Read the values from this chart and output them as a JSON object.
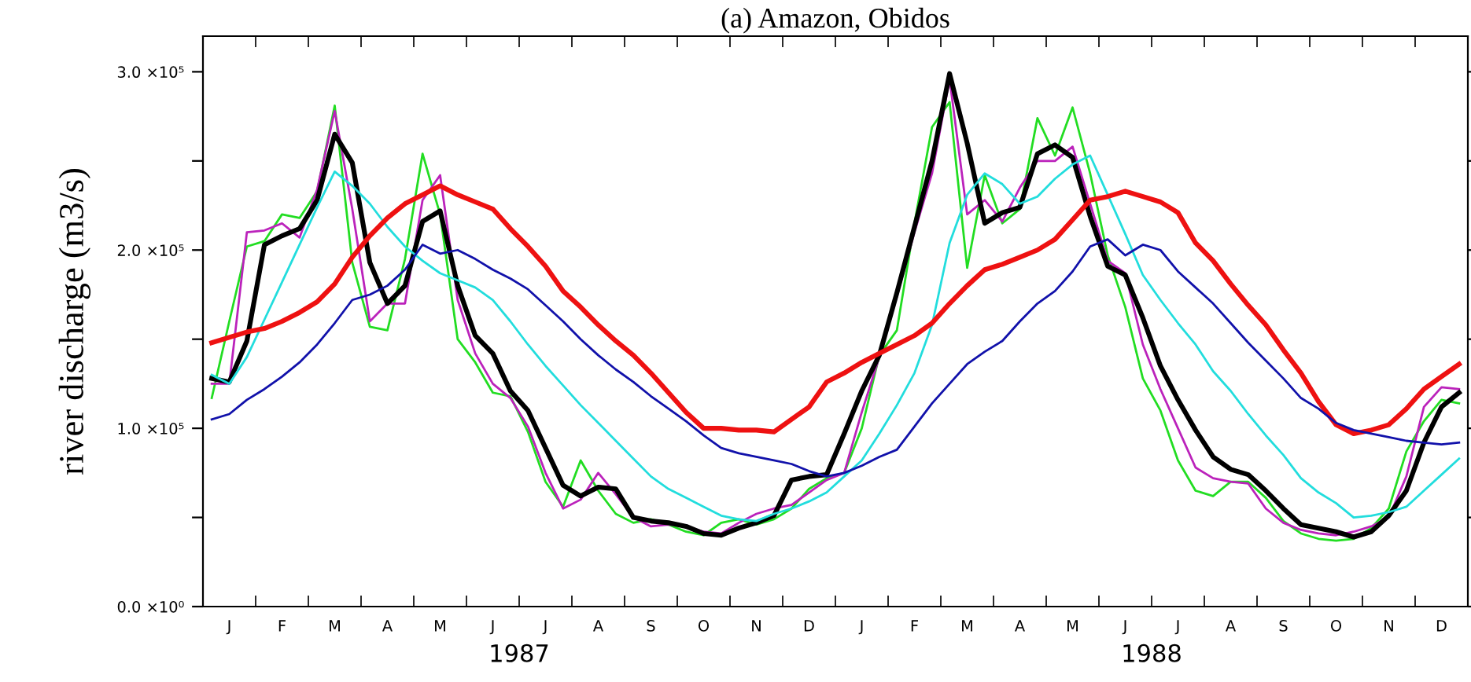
{
  "chart_data": {
    "type": "line",
    "title": "(a) Amazon, Obidos",
    "ylabel": "river discharge (m3/s)",
    "annotations": [
      "1987",
      "1988"
    ],
    "categories": [
      null,
      "J",
      null,
      null,
      "F",
      null,
      null,
      "M",
      null,
      null,
      "A",
      null,
      null,
      "M",
      null,
      null,
      "J",
      null,
      null,
      "J",
      null,
      null,
      "A",
      null,
      null,
      "S",
      null,
      null,
      "O",
      null,
      null,
      "N",
      null,
      null,
      "D",
      null,
      null,
      "J",
      null,
      null,
      "F",
      null,
      null,
      "M",
      null,
      null,
      "A",
      null,
      null,
      "M",
      null,
      null,
      "J",
      null,
      null,
      "J",
      null,
      null,
      "A",
      null,
      null,
      "S",
      null,
      null,
      "O",
      null,
      null,
      "N",
      null,
      null,
      "D",
      null
    ],
    "ylim": [
      0,
      320000
    ],
    "yticks": [
      {
        "value": 0,
        "label": "0.0 ×10⁰"
      },
      {
        "value": 50000,
        "label": null
      },
      {
        "value": 100000,
        "label": "1.0 ×10⁵"
      },
      {
        "value": 150000,
        "label": null
      },
      {
        "value": 200000,
        "label": "2.0 ×10⁵"
      },
      {
        "value": 250000,
        "label": null
      },
      {
        "value": 300000,
        "label": "3.0 ×10⁵"
      }
    ],
    "grid": false,
    "series": [
      {
        "color": "#22dd22",
        "values": [
          117000,
          160000,
          202000,
          205000,
          220000,
          218000,
          233000,
          281000,
          193000,
          157000,
          155000,
          195000,
          254000,
          220000,
          150000,
          137000,
          120000,
          118000,
          98000,
          70000,
          56000,
          82000,
          65000,
          52000,
          47000,
          49000,
          46000,
          42000,
          40000,
          47000,
          49000,
          46000,
          49000,
          55000,
          66000,
          72000,
          75000,
          100000,
          141000,
          155000,
          215000,
          269000,
          283000,
          190000,
          242000,
          215000,
          223000,
          274000,
          253000,
          280000,
          243000,
          197000,
          168000,
          128000,
          110000,
          82000,
          65000,
          62000,
          70000,
          70000,
          61000,
          48000,
          41000,
          38000,
          37000,
          38000,
          44000,
          55000,
          87000,
          104000,
          116000,
          114000
        ]
      },
      {
        "color": "#bb22bb",
        "values": [
          125000,
          125000,
          210000,
          211000,
          215000,
          207000,
          234000,
          278000,
          223000,
          160000,
          170000,
          170000,
          228000,
          242000,
          172000,
          142000,
          125000,
          117000,
          101000,
          75000,
          55000,
          60000,
          75000,
          63000,
          50000,
          45000,
          46000,
          45000,
          42000,
          41000,
          47000,
          52000,
          55000,
          57000,
          64000,
          71000,
          75000,
          109000,
          140000,
          174000,
          210000,
          243000,
          296000,
          220000,
          228000,
          216000,
          235000,
          250000,
          250000,
          258000,
          226000,
          194000,
          187000,
          147000,
          122000,
          100000,
          78000,
          72000,
          70000,
          69000,
          55000,
          47000,
          43000,
          41000,
          40000,
          42000,
          45000,
          50000,
          73000,
          112000,
          123000,
          122000
        ]
      },
      {
        "color": "#000000",
        "values": [
          128000,
          126000,
          149000,
          203000,
          208000,
          212000,
          228000,
          265000,
          249000,
          193000,
          170000,
          180000,
          216000,
          222000,
          180000,
          152000,
          142000,
          121000,
          110000,
          89000,
          68000,
          62000,
          67000,
          66000,
          50000,
          48000,
          47000,
          45000,
          41000,
          40000,
          44000,
          47000,
          51000,
          71000,
          73000,
          74000,
          97000,
          121000,
          141000,
          176000,
          213000,
          250000,
          299000,
          260000,
          215000,
          221000,
          224000,
          254000,
          259000,
          252000,
          219000,
          191000,
          186000,
          162000,
          135000,
          116000,
          99000,
          84000,
          77000,
          74000,
          65000,
          55000,
          46000,
          44000,
          42000,
          39000,
          42000,
          51000,
          65000,
          92000,
          112000,
          120000
        ]
      },
      {
        "color": "#22dddd",
        "values": [
          130000,
          125000,
          140000,
          161000,
          182000,
          203000,
          224000,
          244000,
          236000,
          226000,
          213000,
          202000,
          194000,
          187000,
          183000,
          179000,
          172000,
          160000,
          147000,
          135000,
          124000,
          113000,
          103000,
          93000,
          83000,
          73000,
          66000,
          61000,
          56000,
          51000,
          49000,
          48000,
          52000,
          55000,
          59000,
          64000,
          73000,
          82000,
          97000,
          113000,
          131000,
          158000,
          204000,
          231000,
          243000,
          237000,
          226000,
          230000,
          240000,
          248000,
          253000,
          231000,
          209000,
          186000,
          172000,
          159000,
          147000,
          132000,
          121000,
          108000,
          96000,
          85000,
          72000,
          64000,
          58000,
          50000,
          51000,
          53000,
          56000,
          65000,
          74000,
          83000
        ]
      },
      {
        "color": "#ee1111",
        "values": [
          148000,
          151000,
          154000,
          156000,
          160000,
          165000,
          171000,
          181000,
          196000,
          208000,
          218000,
          226000,
          231000,
          236000,
          231000,
          227000,
          223000,
          212000,
          202000,
          191000,
          177000,
          168000,
          158000,
          149000,
          141000,
          131000,
          120000,
          109000,
          100000,
          100000,
          99000,
          99000,
          98000,
          105000,
          112000,
          126000,
          131000,
          137000,
          142000,
          147000,
          152000,
          159000,
          170000,
          180000,
          189000,
          192000,
          196000,
          200000,
          206000,
          217000,
          228000,
          230000,
          233000,
          230000,
          227000,
          221000,
          204000,
          194000,
          181000,
          169000,
          158000,
          144000,
          131000,
          115000,
          102000,
          97000,
          99000,
          102000,
          111000,
          122000,
          129000,
          136000
        ]
      },
      {
        "color": "#1111aa",
        "values": [
          105000,
          108000,
          116000,
          122000,
          129000,
          137000,
          147000,
          159000,
          172000,
          175000,
          180000,
          189000,
          203000,
          198000,
          200000,
          195000,
          189000,
          184000,
          178000,
          169000,
          160000,
          150000,
          141000,
          133000,
          126000,
          118000,
          111000,
          104000,
          96000,
          89000,
          86000,
          84000,
          82000,
          80000,
          76000,
          73000,
          75000,
          79000,
          84000,
          88000,
          101000,
          114000,
          125000,
          136000,
          143000,
          149000,
          160000,
          170000,
          177000,
          188000,
          202000,
          206000,
          197000,
          203000,
          200000,
          188000,
          179000,
          170000,
          159000,
          148000,
          138000,
          128000,
          117000,
          111000,
          103000,
          99000,
          97000,
          95000,
          93000,
          92000,
          91000,
          92000
        ]
      }
    ]
  }
}
